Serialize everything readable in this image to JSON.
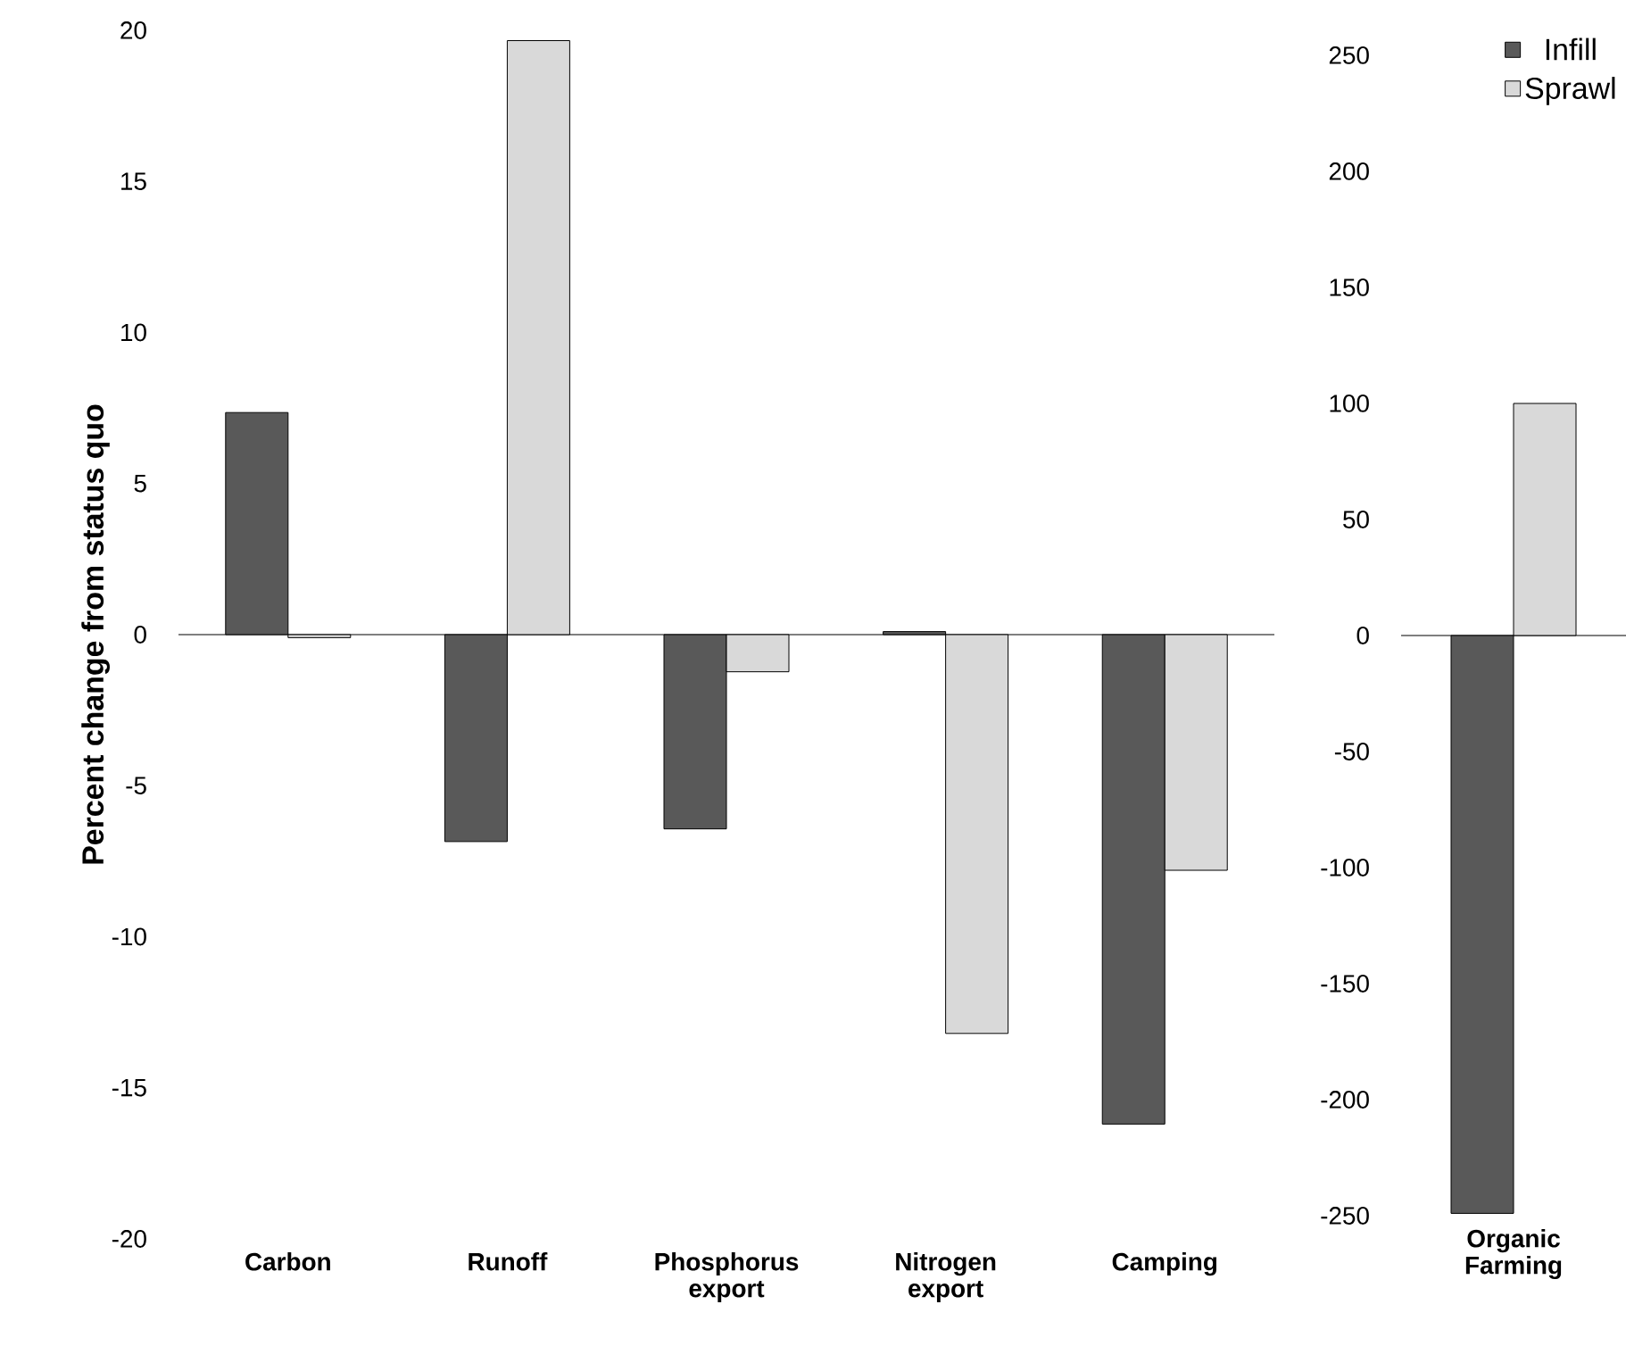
{
  "chart_data": [
    {
      "type": "bar",
      "ylabel": "Percent change from status quo",
      "categories": [
        "Carbon",
        "Runoff",
        "Phosphorus export",
        "Nitrogen export",
        "Camping"
      ],
      "ylim": [
        -20,
        20
      ],
      "yticks": [
        -20,
        -15,
        -10,
        -5,
        0,
        5,
        10,
        15,
        20
      ],
      "series": [
        {
          "color": "#595959",
          "values": [
            7.35,
            -6.85,
            -6.43,
            0.1,
            -16.2
          ]
        },
        {
          "color": "#d9d9d9",
          "values": [
            -0.1,
            19.66,
            -1.23,
            -13.2,
            -7.8
          ]
        }
      ]
    },
    {
      "type": "bar",
      "categories": [
        "Organic Farming"
      ],
      "ylim": [
        -250,
        250
      ],
      "yticks": [
        -250,
        -200,
        -150,
        -100,
        -50,
        0,
        50,
        100,
        150,
        200,
        250
      ],
      "legend": "top right",
      "series": [
        {
          "name": "Infill",
          "color": "#595959",
          "values": [
            -249
          ]
        },
        {
          "name": "Sprawl",
          "color": "#d9d9d9",
          "values": [
            100
          ]
        }
      ]
    }
  ]
}
